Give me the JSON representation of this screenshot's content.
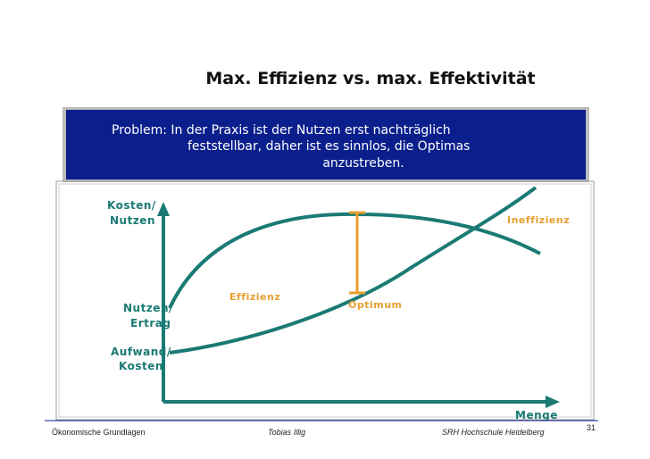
{
  "header": {
    "title": "Max. Effizienz vs. max. Effektivität"
  },
  "problem_box": {
    "lines": [
      "Problem: In der Praxis ist der Nutzen erst nachträglich",
      "feststellbar, daher ist es sinnlos, die Optimas",
      "anzustreben."
    ]
  },
  "diagram": {
    "y_axis_label": [
      "Kosten/",
      "Nutzen"
    ],
    "x_axis_label": "Menge",
    "curves": {
      "benefit": [
        "Nutzen/",
        "Ertrag"
      ],
      "cost": [
        "Aufwand/",
        "Kosten"
      ]
    },
    "annotations": {
      "efficiency": "Effizienz",
      "inefficiency": "Ineffizienz",
      "optimum": "Optimum"
    }
  },
  "footer": {
    "left": "Ökonomische Grundlagen",
    "center": "Tobias Illig",
    "right": "SRH Hochschule Heidelberg",
    "page": "31"
  }
}
